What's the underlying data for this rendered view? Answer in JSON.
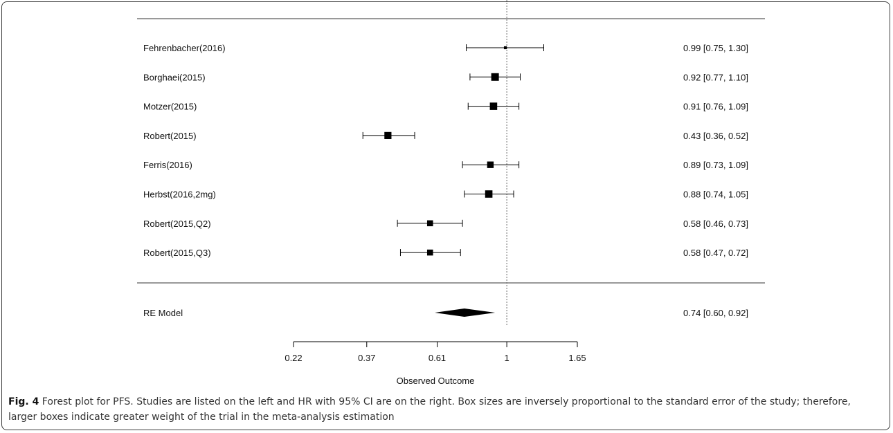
{
  "chart_data": {
    "type": "forest",
    "xlabel": "Observed Outcome",
    "x_ticks": [
      {
        "value": 0.22,
        "label": "0.22"
      },
      {
        "value": 0.37,
        "label": "0.37"
      },
      {
        "value": 0.61,
        "label": "0.61"
      },
      {
        "value": 1,
        "label": "1"
      },
      {
        "value": 1.65,
        "label": "1.65"
      }
    ],
    "xscale": "log",
    "xlim": [
      0.22,
      1.65
    ],
    "reference_line": 1,
    "studies": [
      {
        "label": "Fehrenbacher(2016)",
        "estimate": 0.99,
        "ci_low": 0.75,
        "ci_high": 1.3,
        "text": "0.99 [0.75, 1.30]",
        "weight": 0.15
      },
      {
        "label": "Borghaei(2015)",
        "estimate": 0.92,
        "ci_low": 0.77,
        "ci_high": 1.1,
        "text": "0.92 [0.77, 1.10]",
        "weight": 1.0
      },
      {
        "label": "Motzer(2015)",
        "estimate": 0.91,
        "ci_low": 0.76,
        "ci_high": 1.09,
        "text": "0.91 [0.76, 1.09]",
        "weight": 0.95
      },
      {
        "label": "Robert(2015)",
        "estimate": 0.43,
        "ci_low": 0.36,
        "ci_high": 0.52,
        "text": "0.43 [0.36, 0.52]",
        "weight": 0.9
      },
      {
        "label": "Ferris(2016)",
        "estimate": 0.89,
        "ci_low": 0.73,
        "ci_high": 1.09,
        "text": "0.89 [0.73, 1.09]",
        "weight": 0.8
      },
      {
        "label": "Herbst(2016,2mg)",
        "estimate": 0.88,
        "ci_low": 0.74,
        "ci_high": 1.05,
        "text": "0.88 [0.74, 1.05]",
        "weight": 0.95
      },
      {
        "label": "Robert(2015,Q2)",
        "estimate": 0.58,
        "ci_low": 0.46,
        "ci_high": 0.73,
        "text": "0.58 [0.46, 0.73]",
        "weight": 0.7
      },
      {
        "label": "Robert(2015,Q3)",
        "estimate": 0.58,
        "ci_low": 0.47,
        "ci_high": 0.72,
        "text": "0.58 [0.47, 0.72]",
        "weight": 0.7
      }
    ],
    "summary": {
      "label": "RE Model",
      "estimate": 0.74,
      "ci_low": 0.6,
      "ci_high": 0.92,
      "text": "0.74 [0.60, 0.92]"
    }
  },
  "caption": {
    "figure_label": "Fig. 4",
    "text": " Forest plot for PFS. Studies are listed on the left and HR with 95% CI are on the right. Box sizes are inversely proportional to the standard error of the study; therefore, larger boxes indicate greater weight of the trial in the meta-analysis estimation"
  },
  "colors": {
    "marks": "#000000",
    "text": "#111111",
    "caption": "#333333"
  }
}
